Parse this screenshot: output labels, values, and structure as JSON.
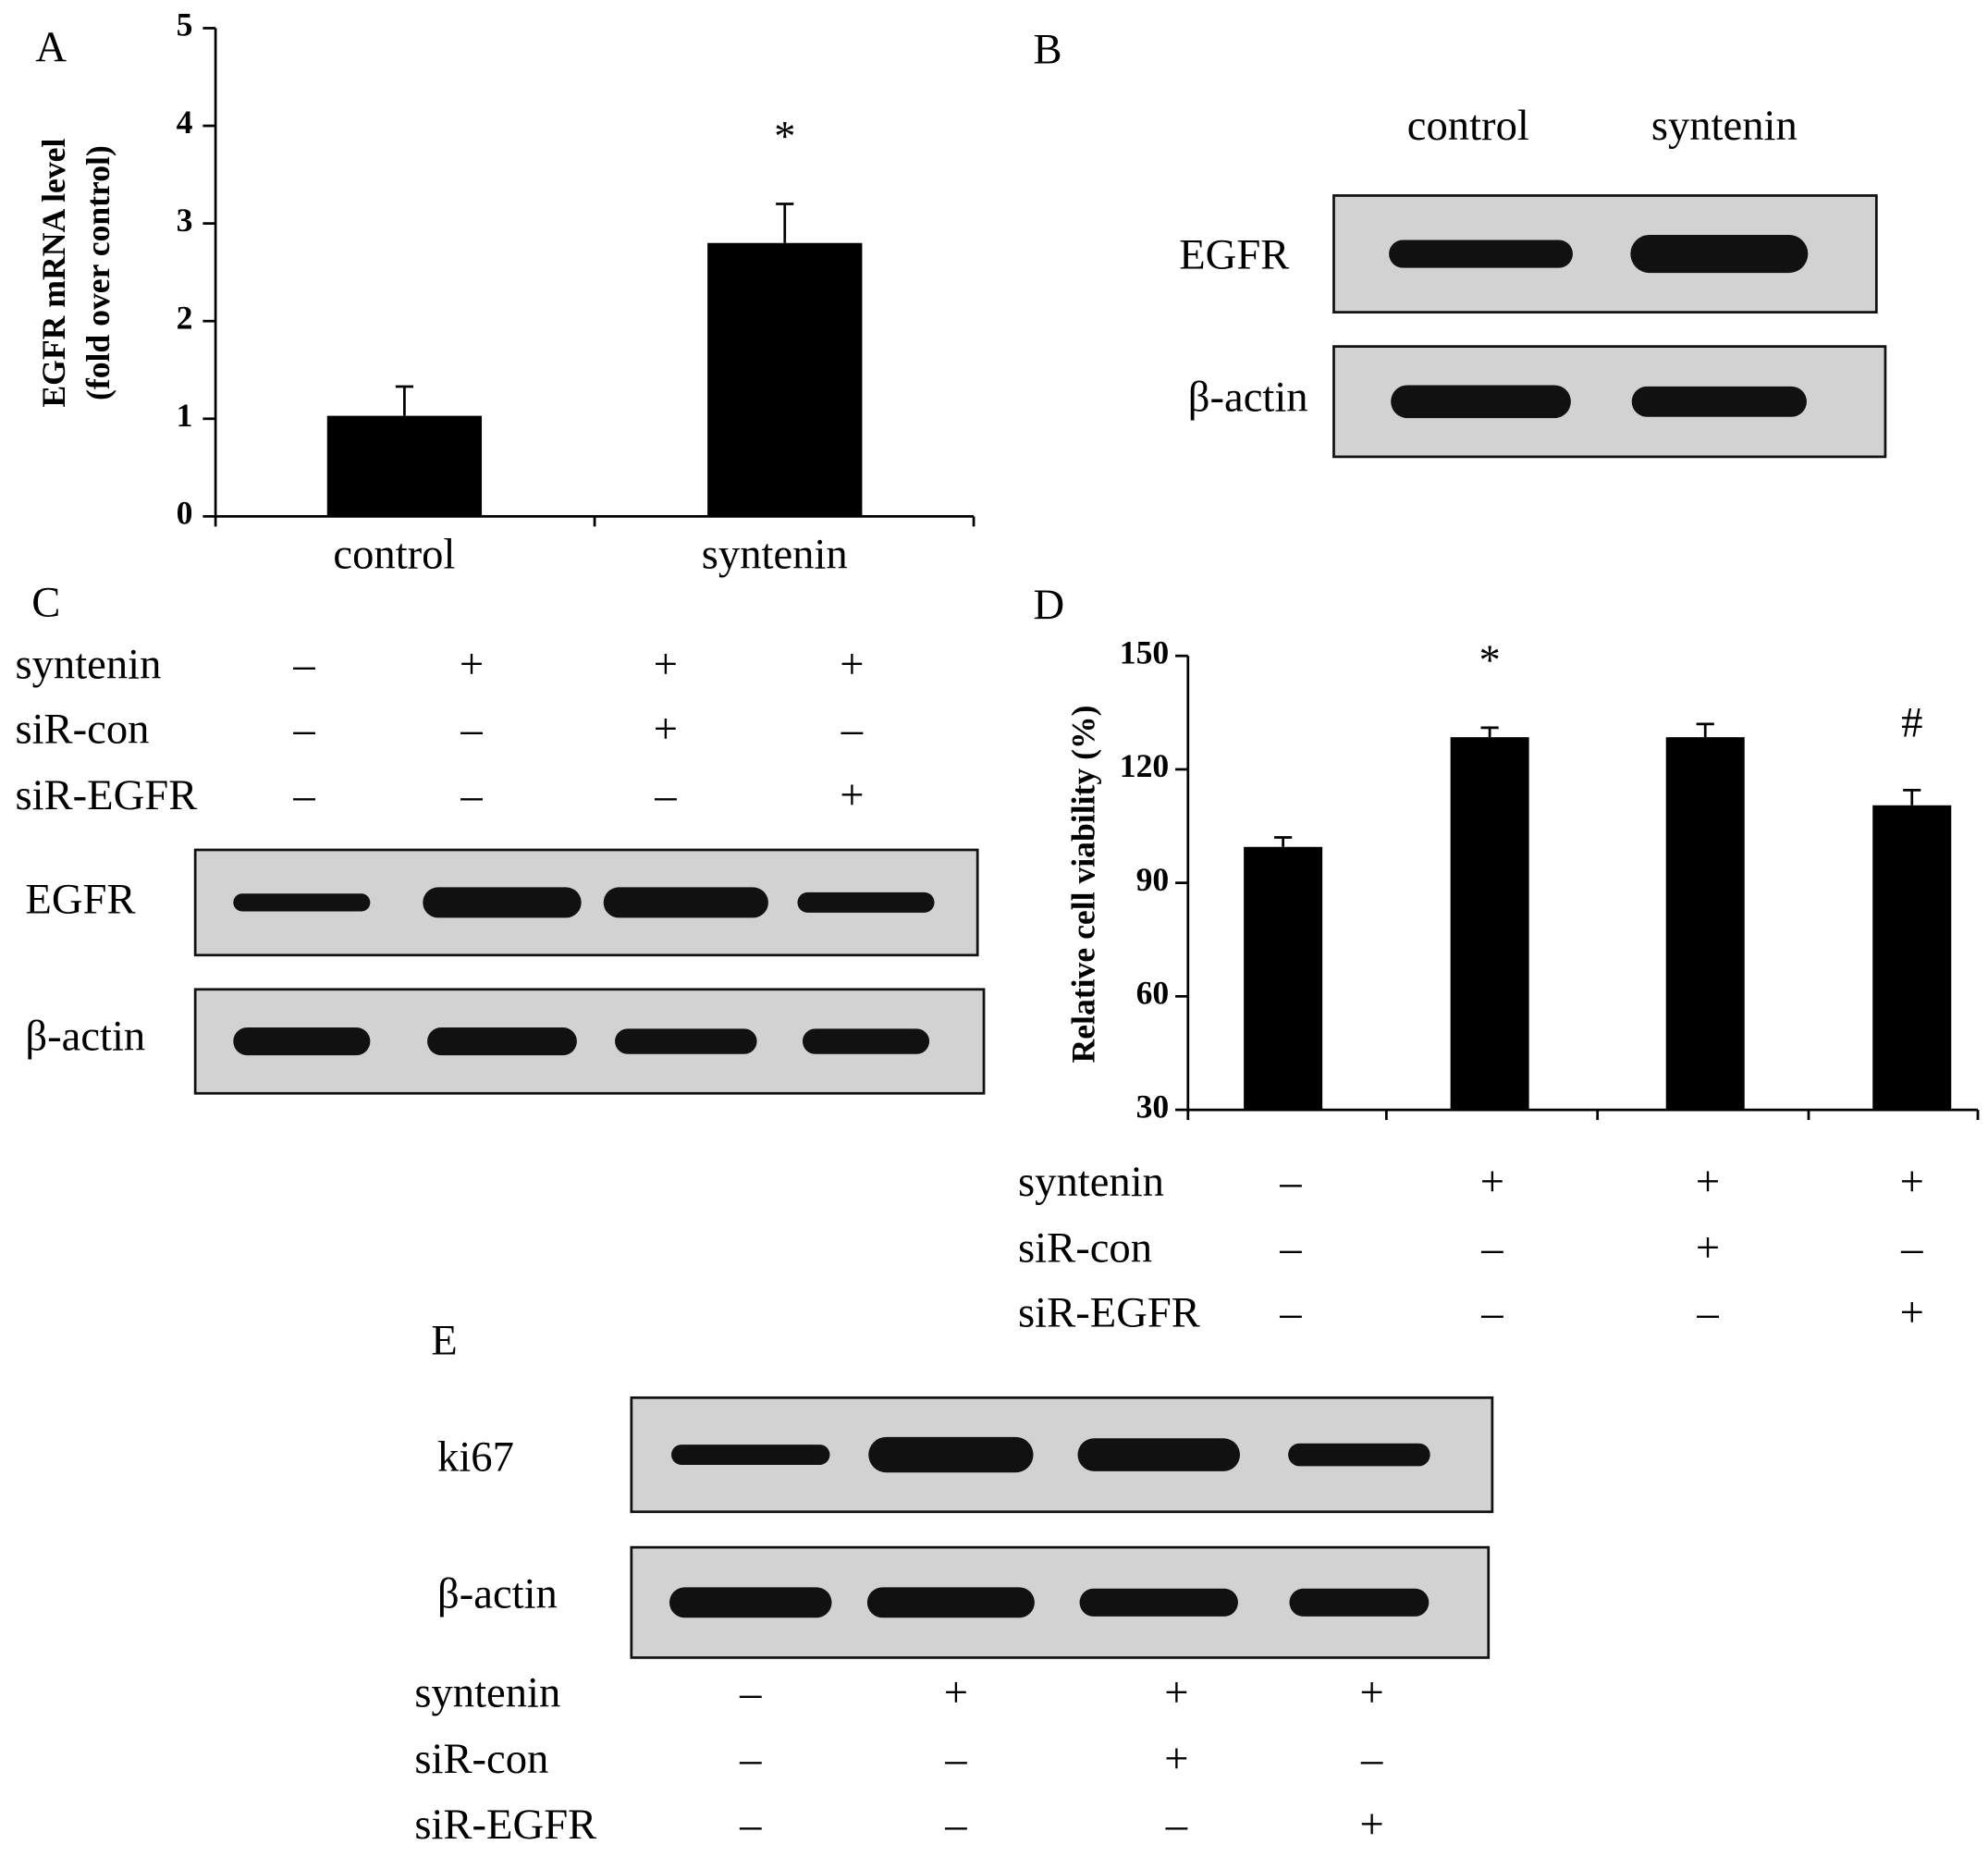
{
  "panel_labels": [
    "A",
    "B",
    "C",
    "D",
    "E"
  ],
  "chart_data": [
    {
      "type": "bar",
      "categories": [
        "control",
        "syntenin"
      ],
      "values": [
        1.03,
        2.8
      ],
      "errors": [
        0.3,
        0.4
      ],
      "annotations": [
        null,
        "*"
      ],
      "y_label": [
        "EGFR mRNA level",
        "(fold over control)"
      ],
      "ylim": [
        0,
        5
      ],
      "yticks": [
        0,
        1,
        2,
        3,
        4,
        5
      ],
      "color": "#000000"
    },
    {
      "type": "bar",
      "categories": [
        null,
        null,
        null,
        null
      ],
      "values": [
        99.5,
        128.5,
        128.5,
        110.5
      ],
      "errors": [
        2.5,
        2.5,
        3.5,
        4
      ],
      "annotations": [
        null,
        "*",
        null,
        "#"
      ],
      "y_label": [
        "Relative cell viability (%)"
      ],
      "ylim": [
        30,
        150
      ],
      "yticks": [
        30,
        60,
        90,
        120,
        150
      ],
      "color": "#000000",
      "conditions": [
        {
          "label": "syntenin",
          "signs": [
            "–",
            "+",
            "+",
            "+"
          ]
        },
        {
          "label": "siR-con",
          "signs": [
            "–",
            "–",
            "+",
            "–"
          ]
        },
        {
          "label": "siR-EGFR",
          "signs": [
            "–",
            "–",
            "–",
            "+"
          ]
        }
      ]
    }
  ],
  "blots": [
    {
      "lanes": [
        "control",
        "syntenin"
      ],
      "rows": [
        "EGFR",
        "β-actin"
      ]
    },
    {
      "rows": [
        "EGFR",
        "β-actin"
      ],
      "conditions": [
        {
          "label": "syntenin",
          "signs": [
            "–",
            "+",
            "+",
            "+"
          ]
        },
        {
          "label": "siR-con",
          "signs": [
            "–",
            "–",
            "+",
            "–"
          ]
        },
        {
          "label": "siR-EGFR",
          "signs": [
            "–",
            "–",
            "–",
            "+"
          ]
        }
      ]
    },
    {
      "rows": [
        "ki67",
        "β-actin"
      ],
      "conditions": [
        {
          "label": "syntenin",
          "signs": [
            "–",
            "+",
            "+",
            "+"
          ]
        },
        {
          "label": "siR-con",
          "signs": [
            "–",
            "–",
            "+",
            "–"
          ]
        },
        {
          "label": "siR-EGFR",
          "signs": [
            "–",
            "–",
            "–",
            "+"
          ]
        }
      ]
    }
  ]
}
